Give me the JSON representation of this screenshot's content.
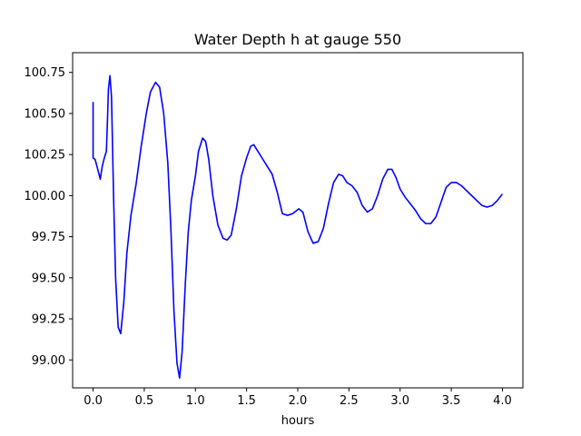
{
  "chart_data": {
    "type": "line",
    "title": "Water Depth h at gauge 550",
    "xlabel": "hours",
    "ylabel": "",
    "xlim": [
      -0.2,
      4.2
    ],
    "ylim": [
      98.83,
      100.87
    ],
    "xticks": [
      0.0,
      0.5,
      1.0,
      1.5,
      2.0,
      2.5,
      3.0,
      3.5,
      4.0
    ],
    "xtick_labels": [
      "0.0",
      "0.5",
      "1.0",
      "1.5",
      "2.0",
      "2.5",
      "3.0",
      "3.5",
      "4.0"
    ],
    "yticks": [
      99.0,
      99.25,
      99.5,
      99.75,
      100.0,
      100.25,
      100.5,
      100.75
    ],
    "ytick_labels": [
      "99.00",
      "99.25",
      "99.50",
      "99.75",
      "100.00",
      "100.25",
      "100.50",
      "100.75"
    ],
    "grid": false,
    "line_color": "#0000ff",
    "series": [
      {
        "name": "",
        "points": [
          [
            0.0,
            100.57
          ],
          [
            0.0,
            100.23
          ],
          [
            0.02,
            100.22
          ],
          [
            0.05,
            100.15
          ],
          [
            0.07,
            100.1
          ],
          [
            0.09,
            100.18
          ],
          [
            0.11,
            100.23
          ],
          [
            0.13,
            100.27
          ],
          [
            0.14,
            100.45
          ],
          [
            0.15,
            100.65
          ],
          [
            0.165,
            100.73
          ],
          [
            0.18,
            100.6
          ],
          [
            0.2,
            100.0
          ],
          [
            0.22,
            99.5
          ],
          [
            0.245,
            99.2
          ],
          [
            0.27,
            99.16
          ],
          [
            0.3,
            99.35
          ],
          [
            0.33,
            99.65
          ],
          [
            0.37,
            99.88
          ],
          [
            0.42,
            100.07
          ],
          [
            0.47,
            100.3
          ],
          [
            0.52,
            100.5
          ],
          [
            0.56,
            100.63
          ],
          [
            0.61,
            100.69
          ],
          [
            0.65,
            100.66
          ],
          [
            0.69,
            100.5
          ],
          [
            0.73,
            100.2
          ],
          [
            0.76,
            99.8
          ],
          [
            0.79,
            99.3
          ],
          [
            0.82,
            98.98
          ],
          [
            0.845,
            98.89
          ],
          [
            0.87,
            99.05
          ],
          [
            0.9,
            99.45
          ],
          [
            0.93,
            99.78
          ],
          [
            0.96,
            99.97
          ],
          [
            1.0,
            100.12
          ],
          [
            1.03,
            100.27
          ],
          [
            1.07,
            100.35
          ],
          [
            1.1,
            100.33
          ],
          [
            1.13,
            100.22
          ],
          [
            1.17,
            100.0
          ],
          [
            1.22,
            99.82
          ],
          [
            1.27,
            99.74
          ],
          [
            1.31,
            99.73
          ],
          [
            1.35,
            99.76
          ],
          [
            1.4,
            99.92
          ],
          [
            1.45,
            100.12
          ],
          [
            1.5,
            100.23
          ],
          [
            1.54,
            100.3
          ],
          [
            1.57,
            100.31
          ],
          [
            1.61,
            100.27
          ],
          [
            1.65,
            100.23
          ],
          [
            1.7,
            100.18
          ],
          [
            1.75,
            100.13
          ],
          [
            1.8,
            100.02
          ],
          [
            1.85,
            99.89
          ],
          [
            1.9,
            99.88
          ],
          [
            1.95,
            99.89
          ],
          [
            2.01,
            99.92
          ],
          [
            2.05,
            99.9
          ],
          [
            2.1,
            99.78
          ],
          [
            2.15,
            99.71
          ],
          [
            2.2,
            99.72
          ],
          [
            2.25,
            99.8
          ],
          [
            2.3,
            99.95
          ],
          [
            2.35,
            100.08
          ],
          [
            2.4,
            100.13
          ],
          [
            2.44,
            100.12
          ],
          [
            2.48,
            100.08
          ],
          [
            2.53,
            100.06
          ],
          [
            2.58,
            100.02
          ],
          [
            2.63,
            99.94
          ],
          [
            2.68,
            99.9
          ],
          [
            2.73,
            99.92
          ],
          [
            2.78,
            100.0
          ],
          [
            2.83,
            100.1
          ],
          [
            2.88,
            100.16
          ],
          [
            2.92,
            100.16
          ],
          [
            2.96,
            100.11
          ],
          [
            3.0,
            100.04
          ],
          [
            3.05,
            99.99
          ],
          [
            3.1,
            99.95
          ],
          [
            3.15,
            99.91
          ],
          [
            3.2,
            99.86
          ],
          [
            3.25,
            99.83
          ],
          [
            3.3,
            99.83
          ],
          [
            3.35,
            99.87
          ],
          [
            3.4,
            99.96
          ],
          [
            3.45,
            100.05
          ],
          [
            3.5,
            100.08
          ],
          [
            3.55,
            100.08
          ],
          [
            3.6,
            100.06
          ],
          [
            3.65,
            100.03
          ],
          [
            3.7,
            100.0
          ],
          [
            3.75,
            99.97
          ],
          [
            3.8,
            99.94
          ],
          [
            3.85,
            99.93
          ],
          [
            3.9,
            99.94
          ],
          [
            3.95,
            99.97
          ],
          [
            4.0,
            100.01
          ]
        ]
      }
    ]
  }
}
